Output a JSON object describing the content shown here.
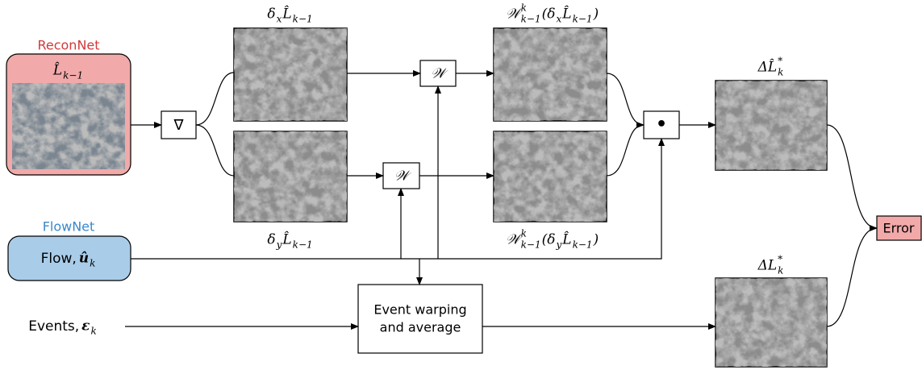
{
  "labels": {
    "reconnet": "ReconNet",
    "flownet": "FlowNet",
    "recon_output": [
      {
        "main": "L̂",
        "sub": "k−1"
      }
    ],
    "flow": [
      {
        "main": "Flow, ",
        "plain": true
      },
      {
        "main": "û",
        "sub": "k",
        "bold": true
      }
    ],
    "events": [
      {
        "main": "Events, ",
        "plain": true
      },
      {
        "main": "ε",
        "sub": "k",
        "bold": true
      }
    ],
    "gradient": "∇",
    "warp_top": "𝒲",
    "warp_bottom": "𝒲",
    "product": "•",
    "grad_x": [
      {
        "main": "δ",
        "sub": "x"
      },
      {
        "main": "L̂",
        "sub": "k−1"
      }
    ],
    "grad_y": [
      {
        "main": "δ",
        "sub": "y"
      },
      {
        "main": "L̂",
        "sub": "k−1"
      }
    ],
    "warped_x": [
      {
        "main": "𝒲",
        "sup": "k",
        "sub": "k−1"
      },
      {
        "main": "(δ",
        "sub": "x"
      },
      {
        "main": "L̂",
        "sub": "k−1"
      },
      {
        "main": ")"
      }
    ],
    "warped_y": [
      {
        "main": "𝒲",
        "sup": "k",
        "sub": "k−1"
      },
      {
        "main": "(δ",
        "sub": "y"
      },
      {
        "main": "L̂",
        "sub": "k−1"
      },
      {
        "main": ")"
      }
    ],
    "delta_hat": [
      {
        "main": "ΔL̂",
        "sup": "*",
        "sub": "k"
      }
    ],
    "delta": [
      {
        "main": "ΔL",
        "sup": "*",
        "sub": "k"
      }
    ],
    "event_warping": [
      "Event warping",
      "and average"
    ],
    "error": "Error"
  }
}
